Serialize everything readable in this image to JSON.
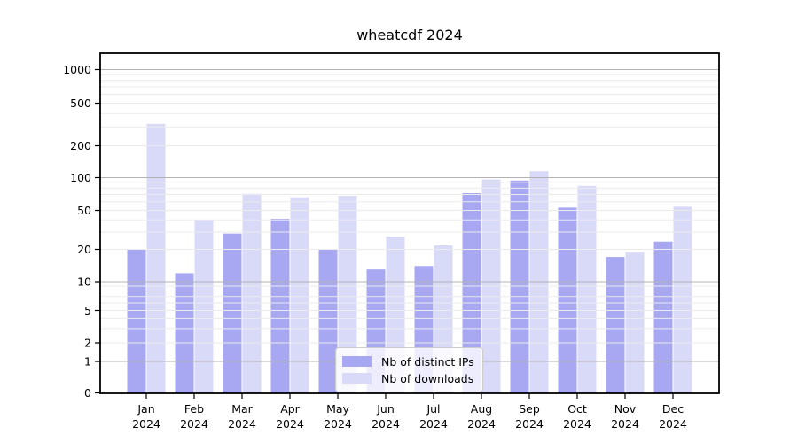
{
  "page": {
    "background": "#ffffff"
  },
  "chart_data": {
    "type": "bar",
    "title": "wheatcdf 2024",
    "categories": [
      "Jan",
      "Feb",
      "Mar",
      "Apr",
      "May",
      "Jun",
      "Jul",
      "Aug",
      "Sep",
      "Oct",
      "Nov",
      "Dec"
    ],
    "category_year": "2024",
    "series": [
      {
        "name": "Nb of distinct IPs",
        "color": "#a7a7f2",
        "values": [
          20,
          12,
          29,
          41,
          20,
          13,
          14,
          72,
          94,
          53,
          17,
          24
        ]
      },
      {
        "name": "Nb of downloads",
        "color": "#d9d9f8",
        "values": [
          320,
          40,
          71,
          66,
          68,
          27,
          22,
          96,
          115,
          84,
          19,
          54
        ]
      }
    ],
    "yaxis": {
      "scale": "log-like",
      "ticks": [
        0,
        1,
        2,
        5,
        10,
        20,
        50,
        100,
        200,
        500,
        1000
      ],
      "ylim": [
        0,
        1500
      ]
    },
    "xlabel": "",
    "ylabel": "",
    "grid": {
      "orientation": "horizontal",
      "major_values": [
        1,
        10,
        100,
        1000
      ],
      "major_color": "#b3b3b3",
      "minor_color": "#ebebee"
    },
    "legend": {
      "position": "lower-center"
    },
    "axis_color": "#000000"
  }
}
